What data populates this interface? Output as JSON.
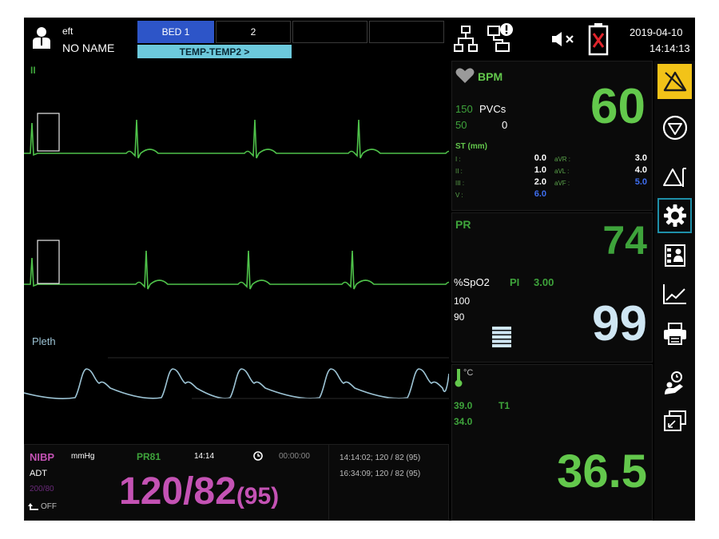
{
  "patient": {
    "line1": "eft",
    "line2": "NO NAME"
  },
  "beds": [
    {
      "label": "BED 1",
      "active": true
    },
    {
      "label": "2",
      "active": false
    },
    {
      "label": "",
      "active": false
    },
    {
      "label": "",
      "active": false
    }
  ],
  "subtab": {
    "label": "TEMP-TEMP2 >"
  },
  "datetime": {
    "date": "2019-04-10",
    "time": "14:14:13"
  },
  "icons": [
    "network-icon",
    "network-alert-icon",
    "mute-icon",
    "battery-empty-icon"
  ],
  "waves": [
    {
      "label": "II",
      "color": "#4fc24a",
      "type": "ecg"
    },
    {
      "label": "",
      "color": "#4fc24a",
      "type": "ecg"
    },
    {
      "label": "Pleth",
      "color": "#9cc3d4",
      "type": "pleth"
    }
  ],
  "hr": {
    "label": "BPM",
    "value": "60",
    "upper": "150",
    "lower": "50",
    "pvc_label": "PVCs",
    "pvc_value": "0",
    "st_title": "ST (mm)",
    "st": [
      {
        "l1": "I :",
        "v1": "0.0",
        "l2": "aVR :",
        "v2": "3.0"
      },
      {
        "l1": "II :",
        "v1": "1.0",
        "l2": "aVL :",
        "v2": "4.0"
      },
      {
        "l1": "III :",
        "v1": "2.0",
        "l2": "aVF :",
        "v2": "5.0"
      },
      {
        "l1": "V :",
        "v1": "6.0",
        "l2": "",
        "v2": ""
      }
    ]
  },
  "spo2": {
    "pr_label": "PR",
    "pr_value": "74",
    "label": "%SpO2",
    "pi_label": "PI",
    "pi_value": "3.00",
    "upper": "100",
    "lower": "90",
    "value": "99",
    "bar_level": 0.5
  },
  "temp": {
    "unit": "°C",
    "upper": "39.0",
    "lower": "34.0",
    "channel": "T1",
    "value": "36.5"
  },
  "nibp": {
    "label": "NIBP",
    "unit": "mmHg",
    "mode": "ADT",
    "limits": "200/80",
    "cycle": "OFF",
    "pr_label": "PR",
    "pr_value": "81",
    "time": "14:14",
    "timer": "00:00:00",
    "value_main": "120/82",
    "value_mean": "(95)"
  },
  "history": [
    "14:14:02; 120 / 82 (95)",
    "16:34:09; 120 / 82 (95)"
  ],
  "toolbar": [
    "alarm-triangle-icon",
    "alarm-stop-icon",
    "alarm-setup-icon",
    "settings-gear-icon",
    "patient-record-icon",
    "trend-chart-icon",
    "print-icon",
    "patient-admit-icon",
    "screen-switch-icon"
  ],
  "colors": {
    "ecg": "#4fc24a",
    "pleth": "#9cc3d4",
    "hr": "#63c84c",
    "spo2": "#cfe6f3",
    "nibp": "#c452b4",
    "alarm": "#f2c318"
  }
}
